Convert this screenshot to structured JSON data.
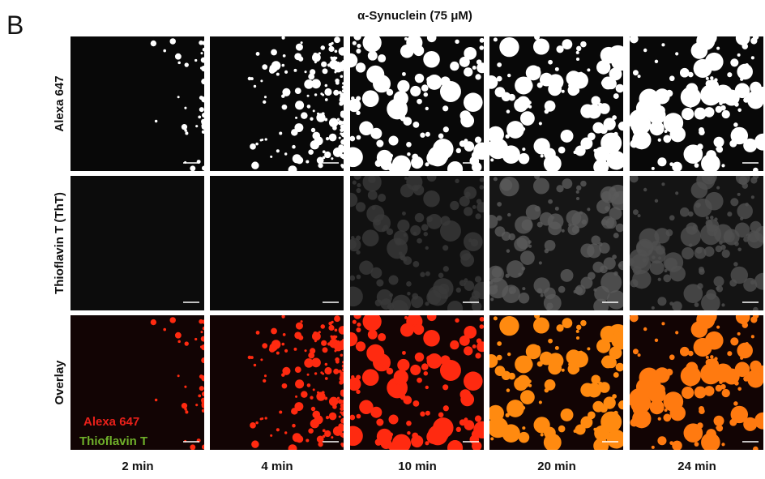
{
  "panel_label": "B",
  "title": "α-Synuclein (75 μM)",
  "rows": [
    "Alexa 647",
    "Thioflavin T (ThT)",
    "Overlay"
  ],
  "columns": [
    "2 min",
    "4 min",
    "10 min",
    "20 min",
    "24 min"
  ],
  "legend": [
    "Alexa 647",
    "Thioflavin T"
  ]
}
